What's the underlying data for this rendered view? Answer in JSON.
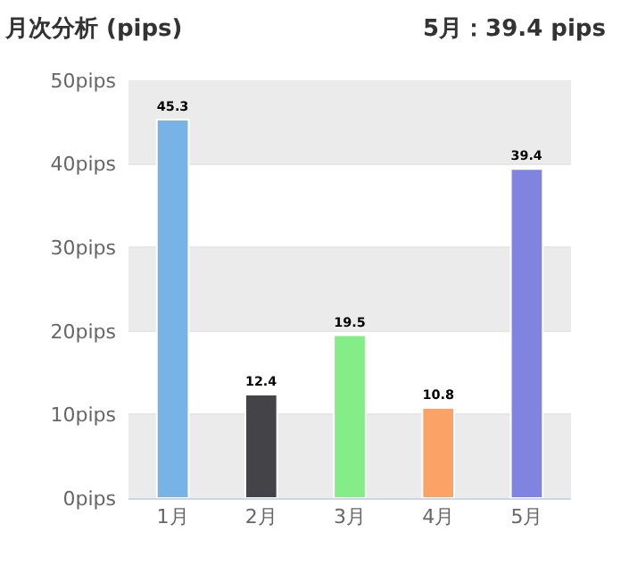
{
  "chart_data": {
    "type": "bar",
    "title": "月次分析 (pips)",
    "subtitle": "5月：39.4 pips",
    "categories": [
      "1月",
      "2月",
      "3月",
      "4月",
      "5月"
    ],
    "values": [
      45.3,
      12.4,
      19.5,
      10.8,
      39.4
    ],
    "colors": [
      "#77b3e6",
      "#434348",
      "#84ed88",
      "#fba267",
      "#8083e0"
    ],
    "data_labels": true,
    "ylim": [
      0,
      50
    ],
    "yticks": [
      {
        "value": 0,
        "label": "0pips"
      },
      {
        "value": 10,
        "label": "10pips"
      },
      {
        "value": 20,
        "label": "20pips"
      },
      {
        "value": 30,
        "label": "30pips"
      },
      {
        "value": 40,
        "label": "40pips"
      },
      {
        "value": 50,
        "label": "50pips"
      }
    ],
    "grid": "y",
    "bands": [
      {
        "axis": "y",
        "from": 0,
        "to": 10,
        "color": "#ebebeb"
      },
      {
        "axis": "y",
        "from": 20,
        "to": 30,
        "color": "#ebebeb"
      },
      {
        "axis": "y",
        "from": 40,
        "to": 50,
        "color": "#ebebeb"
      }
    ]
  }
}
